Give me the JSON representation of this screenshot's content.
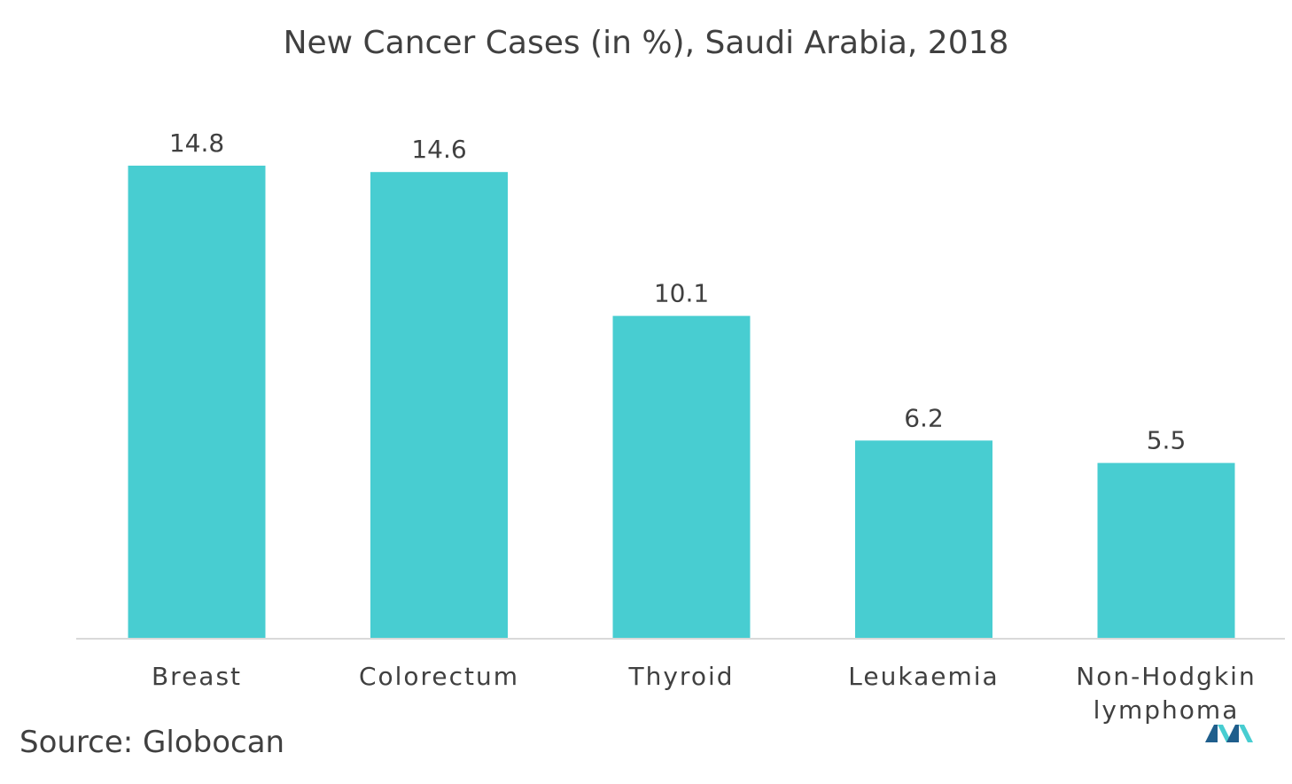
{
  "chart_data": {
    "type": "bar",
    "title": "New Cancer Cases (in %), Saudi Arabia, 2018",
    "categories": [
      "Breast",
      "Colorectum",
      "Thyroid",
      "Leukaemia",
      "Non-Hodgkin lymphoma"
    ],
    "category_lines": [
      [
        "Breast"
      ],
      [
        "Colorectum"
      ],
      [
        "Thyroid"
      ],
      [
        "Leukaemia"
      ],
      [
        "Non-Hodgkin",
        "lymphoma"
      ]
    ],
    "values": [
      14.8,
      14.6,
      10.1,
      6.2,
      5.5
    ],
    "value_labels": [
      "14.8",
      "14.6",
      "10.1",
      "6.2",
      "5.5"
    ],
    "xlabel": "",
    "ylabel": "",
    "ylim": [
      0,
      14.8
    ],
    "grid": false,
    "legend": "none",
    "bar_color": "#48CDD1",
    "axis_color": "#D9D9D9",
    "text_color": "#404040"
  },
  "source": "Source: Globocan",
  "logo": {
    "icon": "brand-logo-icon",
    "colors": [
      "#1F5E8C",
      "#48CDD1"
    ]
  }
}
